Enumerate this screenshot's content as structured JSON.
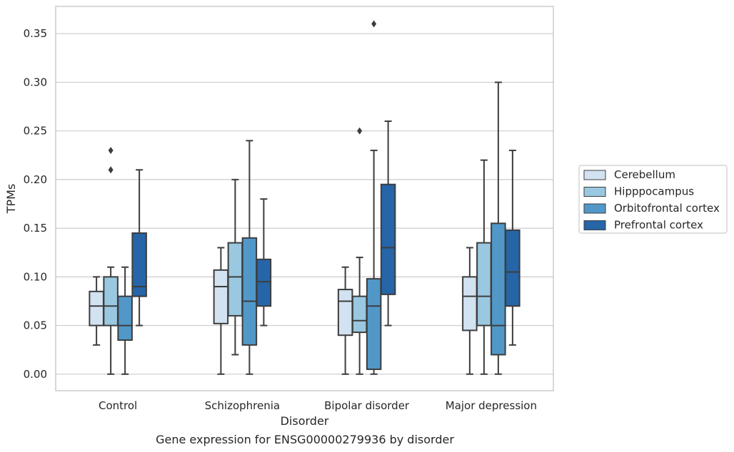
{
  "chart_data": {
    "type": "box",
    "caption": "Gene expression for ENSG00000279936 by disorder",
    "xlabel": "Disorder",
    "ylabel": "TPMs",
    "ylim": [
      -0.017,
      0.378
    ],
    "yticks": [
      "0.00",
      "0.05",
      "0.10",
      "0.15",
      "0.20",
      "0.25",
      "0.30",
      "0.35"
    ],
    "grid": true,
    "legend_position": "right",
    "categories": [
      "Control",
      "Schizophrenia",
      "Bipolar disorder",
      "Major depression"
    ],
    "series": [
      {
        "name": "Cerebellum",
        "color": "#d2e2f1",
        "boxes": [
          {
            "whislo": 0.03,
            "q1": 0.05,
            "med": 0.07,
            "q3": 0.085,
            "whishi": 0.1,
            "fliers": []
          },
          {
            "whislo": 0.0,
            "q1": 0.052,
            "med": 0.09,
            "q3": 0.107,
            "whishi": 0.13,
            "fliers": []
          },
          {
            "whislo": 0.0,
            "q1": 0.04,
            "med": 0.075,
            "q3": 0.087,
            "whishi": 0.11,
            "fliers": []
          },
          {
            "whislo": 0.0,
            "q1": 0.045,
            "med": 0.08,
            "q3": 0.1,
            "whishi": 0.13,
            "fliers": []
          }
        ]
      },
      {
        "name": "Hipppocampus",
        "color": "#9ac8e0",
        "boxes": [
          {
            "whislo": 0.0,
            "q1": 0.05,
            "med": 0.07,
            "q3": 0.1,
            "whishi": 0.11,
            "fliers": [
              0.21,
              0.23
            ]
          },
          {
            "whislo": 0.02,
            "q1": 0.06,
            "med": 0.1,
            "q3": 0.135,
            "whishi": 0.2,
            "fliers": []
          },
          {
            "whislo": 0.0,
            "q1": 0.043,
            "med": 0.055,
            "q3": 0.08,
            "whishi": 0.12,
            "fliers": [
              0.25
            ]
          },
          {
            "whislo": 0.0,
            "q1": 0.05,
            "med": 0.08,
            "q3": 0.135,
            "whishi": 0.22,
            "fliers": []
          }
        ]
      },
      {
        "name": "Orbitofrontal cortex",
        "color": "#5198c8",
        "boxes": [
          {
            "whislo": 0.0,
            "q1": 0.035,
            "med": 0.05,
            "q3": 0.08,
            "whishi": 0.11,
            "fliers": []
          },
          {
            "whislo": 0.0,
            "q1": 0.03,
            "med": 0.075,
            "q3": 0.14,
            "whishi": 0.24,
            "fliers": []
          },
          {
            "whislo": 0.0,
            "q1": 0.005,
            "med": 0.07,
            "q3": 0.098,
            "whishi": 0.23,
            "fliers": [
              0.36
            ]
          },
          {
            "whislo": 0.0,
            "q1": 0.02,
            "med": 0.05,
            "q3": 0.155,
            "whishi": 0.3,
            "fliers": []
          }
        ]
      },
      {
        "name": "Prefrontal cortex",
        "color": "#2665a8",
        "boxes": [
          {
            "whislo": 0.05,
            "q1": 0.08,
            "med": 0.09,
            "q3": 0.145,
            "whishi": 0.21,
            "fliers": []
          },
          {
            "whislo": 0.05,
            "q1": 0.07,
            "med": 0.095,
            "q3": 0.118,
            "whishi": 0.18,
            "fliers": []
          },
          {
            "whislo": 0.05,
            "q1": 0.082,
            "med": 0.13,
            "q3": 0.195,
            "whishi": 0.26,
            "fliers": []
          },
          {
            "whislo": 0.03,
            "q1": 0.07,
            "med": 0.105,
            "q3": 0.148,
            "whishi": 0.23,
            "fliers": []
          }
        ]
      }
    ]
  }
}
